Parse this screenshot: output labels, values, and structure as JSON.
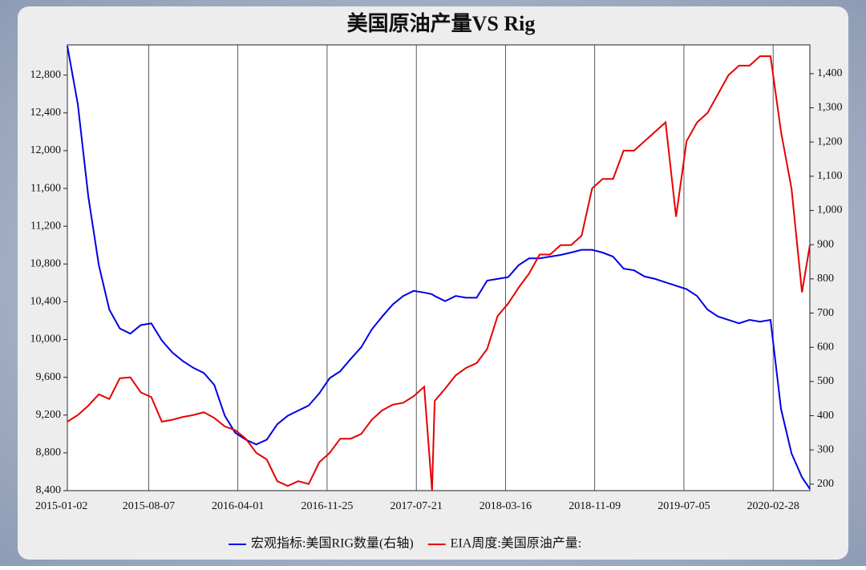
{
  "chart_data": {
    "type": "line",
    "title": "美国原油产量VS Rig",
    "x": [
      "2015-01-02",
      "2015-01-30",
      "2015-02-27",
      "2015-03-27",
      "2015-04-24",
      "2015-05-22",
      "2015-06-19",
      "2015-07-17",
      "2015-08-14",
      "2015-09-11",
      "2015-10-09",
      "2015-11-06",
      "2015-12-04",
      "2016-01-01",
      "2016-01-29",
      "2016-02-26",
      "2016-03-25",
      "2016-04-22",
      "2016-05-20",
      "2016-06-17",
      "2016-07-15",
      "2016-08-12",
      "2016-09-09",
      "2016-10-07",
      "2016-11-04",
      "2016-12-02",
      "2016-12-30",
      "2017-01-27",
      "2017-02-24",
      "2017-03-24",
      "2017-04-21",
      "2017-05-19",
      "2017-06-16",
      "2017-07-14",
      "2017-08-11",
      "2017-09-01",
      "2017-09-08",
      "2017-10-06",
      "2017-11-03",
      "2017-12-01",
      "2017-12-29",
      "2018-01-26",
      "2018-02-23",
      "2018-03-23",
      "2018-04-20",
      "2018-05-18",
      "2018-06-15",
      "2018-07-13",
      "2018-08-10",
      "2018-09-07",
      "2018-10-05",
      "2018-11-02",
      "2018-11-30",
      "2018-12-28",
      "2019-01-25",
      "2019-02-22",
      "2019-03-22",
      "2019-04-19",
      "2019-05-17",
      "2019-06-14",
      "2019-07-12",
      "2019-08-09",
      "2019-09-06",
      "2019-10-04",
      "2019-11-01",
      "2019-11-29",
      "2019-12-27",
      "2020-01-24",
      "2020-02-21",
      "2020-03-20",
      "2020-04-17",
      "2020-05-15",
      "2020-06-05"
    ],
    "series": [
      {
        "name": "宏观指标:美国RIG数量(右轴)",
        "color": "#0000e6",
        "axis": "y2",
        "values": [
          1481,
          1310,
          1040,
          840,
          710,
          655,
          640,
          665,
          670,
          620,
          585,
          560,
          540,
          525,
          490,
          400,
          350,
          330,
          316,
          330,
          375,
          400,
          415,
          430,
          465,
          510,
          530,
          566,
          600,
          652,
          690,
          725,
          750,
          765,
          760,
          755,
          750,
          735,
          750,
          745,
          745,
          795,
          800,
          805,
          840,
          860,
          860,
          865,
          870,
          877,
          885,
          885,
          877,
          865,
          830,
          825,
          807,
          800,
          790,
          780,
          770,
          750,
          710,
          690,
          680,
          670,
          680,
          675,
          680,
          420,
          290,
          220,
          186
        ]
      },
      {
        "name": "EIA周度:美国原油产量:",
        "color": "#e60000",
        "values": [
          9130,
          9200,
          9300,
          9420,
          9370,
          9590,
          9600,
          9440,
          9390,
          9130,
          9150,
          9180,
          9200,
          9230,
          9170,
          9080,
          9040,
          8950,
          8800,
          8730,
          8500,
          8450,
          8500,
          8470,
          8700,
          8800,
          8950,
          8950,
          9000,
          9150,
          9250,
          9310,
          9330,
          9400,
          9500,
          8400,
          9350,
          9480,
          9620,
          9700,
          9750,
          9900,
          10250,
          10380,
          10550,
          10700,
          10900,
          10900,
          11000,
          11000,
          11100,
          11600,
          11700,
          11700,
          12000,
          12000,
          12100,
          12200,
          12300,
          11300,
          12100,
          12300,
          12400,
          12600,
          12800,
          12900,
          12900,
          13000,
          13000,
          12200,
          11600,
          10500,
          11000
        ]
      }
    ],
    "xlim": [
      "2015-01-02",
      "2020-06-05"
    ],
    "xticks": [
      "2015-01-02",
      "2015-08-07",
      "2016-04-01",
      "2016-11-25",
      "2017-07-21",
      "2018-03-16",
      "2018-11-09",
      "2019-07-05",
      "2020-02-28"
    ],
    "ylim": [
      8400,
      13120
    ],
    "yticks": [
      {
        "value": 8400,
        "label": "8,400"
      },
      {
        "value": 8800,
        "label": "8,800"
      },
      {
        "value": 9200,
        "label": "9,200"
      },
      {
        "value": 9600,
        "label": "9,600"
      },
      {
        "value": 10000,
        "label": "10,000"
      },
      {
        "value": 10400,
        "label": "10,400"
      },
      {
        "value": 10800,
        "label": "10,800"
      },
      {
        "value": 11200,
        "label": "11,200"
      },
      {
        "value": 11600,
        "label": "11,600"
      },
      {
        "value": 12000,
        "label": "12,000"
      },
      {
        "value": 12400,
        "label": "12,400"
      },
      {
        "value": 12800,
        "label": "12,800"
      }
    ],
    "y2lim": [
      181,
      1484
    ],
    "y2ticks": [
      200,
      300,
      400,
      500,
      600,
      700,
      800,
      900,
      {
        "value": 1000,
        "label": "1,000"
      },
      {
        "value": 1100,
        "label": "1,100"
      },
      {
        "value": 1200,
        "label": "1,200"
      },
      {
        "value": 1300,
        "label": "1,300"
      },
      {
        "value": 1400,
        "label": "1,400"
      }
    ],
    "grid": "x",
    "legend": "bottom"
  }
}
